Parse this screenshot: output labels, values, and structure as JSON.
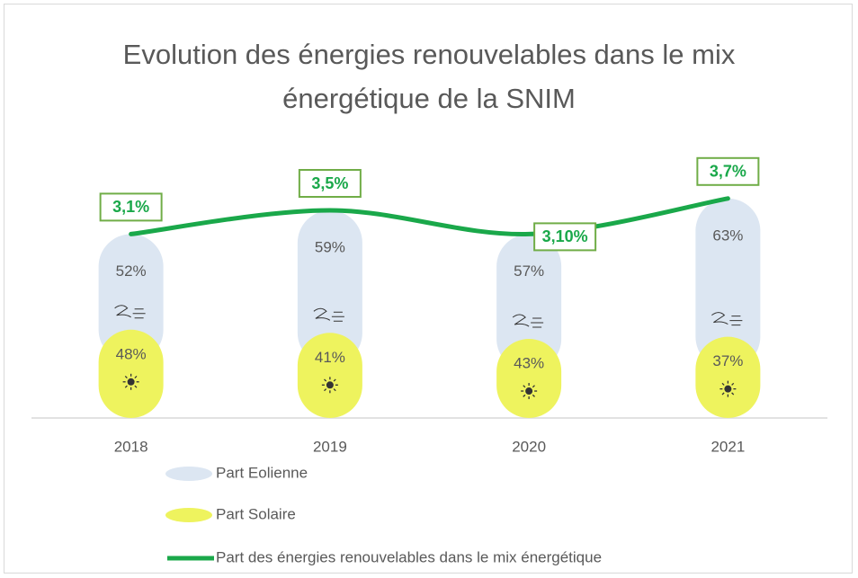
{
  "chart_data": {
    "type": "bar",
    "stacked": true,
    "title": "Evolution des énergies renouvelables dans le mix énergétique de la SNIM",
    "categories": [
      "2018",
      "2019",
      "2020",
      "2021"
    ],
    "series": [
      {
        "name": "Part Eolienne",
        "color": "#dce6f2",
        "values": [
          52,
          59,
          57,
          63
        ],
        "value_labels": [
          "52%",
          "59%",
          "57%",
          "63%"
        ]
      },
      {
        "name": "Part Solaire",
        "color": "#eef35e",
        "values": [
          48,
          41,
          43,
          37
        ],
        "value_labels": [
          "48%",
          "41%",
          "43%",
          "37%"
        ]
      },
      {
        "name": "Part des énergies renouvelables dans le mix énergétique",
        "type": "line",
        "color": "#1aa84a",
        "values": [
          3.1,
          3.5,
          3.1,
          3.7
        ],
        "value_labels": [
          "3,1%",
          "3,5%",
          "3,10%",
          "3,7%"
        ]
      }
    ]
  }
}
